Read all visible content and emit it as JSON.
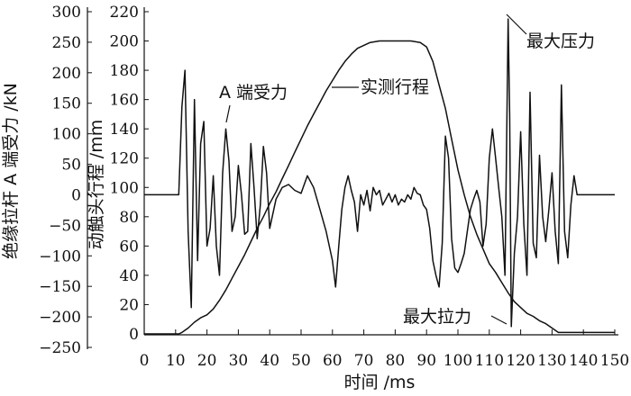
{
  "chart_data": {
    "type": "line",
    "title": "",
    "xlabel": "时间 /ms",
    "xlim": [
      0,
      150
    ],
    "x_ticks": [
      0,
      10,
      20,
      30,
      40,
      50,
      60,
      70,
      80,
      90,
      100,
      110,
      120,
      130,
      140,
      150
    ],
    "y_left": {
      "label": "绝缘拉杆 A 端受力 /kN",
      "lim": [
        -250,
        300
      ],
      "ticks": [
        -250,
        -200,
        -150,
        -100,
        -50,
        0,
        50,
        100,
        150,
        200,
        250,
        300
      ]
    },
    "y_right": {
      "label": "动触头行程 /mm",
      "lim": [
        0,
        220
      ],
      "ticks": [
        0,
        20,
        40,
        60,
        80,
        100,
        120,
        140,
        160,
        180,
        200,
        220
      ]
    },
    "grid": false,
    "annotations": [
      {
        "text": "A 端受力",
        "target_series": "force"
      },
      {
        "text": "实测行程",
        "target_series": "travel"
      },
      {
        "text": "最大压力",
        "x": 116.5,
        "y": 218,
        "axis": "right"
      },
      {
        "text": "最大拉力",
        "x": 116.5,
        "y": 7,
        "axis": "right"
      }
    ],
    "series": [
      {
        "id": "force",
        "axis": "right",
        "color": "#111111",
        "x": [
          0,
          11,
          12,
          13,
          14,
          15,
          16,
          17,
          18,
          19,
          20,
          21,
          22,
          23,
          24,
          25,
          26,
          27,
          28,
          29,
          30,
          31,
          32,
          33,
          34,
          35,
          36,
          37,
          38,
          39,
          40,
          42,
          44,
          46,
          48,
          50,
          52,
          54,
          56,
          58,
          60,
          61,
          62,
          63,
          64,
          65,
          66,
          67,
          68,
          69,
          70,
          71,
          72,
          73,
          74,
          75,
          76,
          77,
          78,
          79,
          80,
          81,
          82,
          83,
          84,
          85,
          86,
          87,
          88,
          89,
          90,
          91,
          92,
          93,
          94,
          95,
          96,
          97,
          98,
          99,
          100,
          101,
          102,
          103,
          104,
          105,
          106,
          107,
          108,
          109,
          110,
          111,
          112,
          113,
          114,
          115,
          116,
          116.5,
          117,
          118,
          119,
          120,
          121,
          122,
          123,
          124,
          125,
          126,
          127,
          128,
          129,
          130,
          131,
          132,
          133,
          134,
          135,
          136,
          137,
          138,
          140,
          150
        ],
        "y": [
          95,
          95,
          155,
          180,
          70,
          18,
          160,
          50,
          130,
          145,
          60,
          72,
          108,
          60,
          40,
          110,
          140,
          118,
          70,
          80,
          115,
          95,
          68,
          70,
          130,
          100,
          65,
          88,
          128,
          110,
          72,
          92,
          100,
          102,
          98,
          96,
          108,
          100,
          85,
          70,
          50,
          32,
          60,
          85,
          100,
          108,
          98,
          90,
          70,
          95,
          88,
          98,
          84,
          100,
          95,
          98,
          88,
          92,
          96,
          90,
          95,
          88,
          92,
          90,
          95,
          92,
          100,
          96,
          95,
          88,
          85,
          72,
          50,
          40,
          32,
          62,
          135,
          120,
          65,
          45,
          42,
          48,
          55,
          70,
          85,
          92,
          98,
          90,
          60,
          75,
          120,
          140,
          120,
          100,
          80,
          40,
          215,
          150,
          5,
          55,
          80,
          138,
          75,
          40,
          165,
          62,
          52,
          122,
          80,
          63,
          85,
          110,
          70,
          48,
          170,
          70,
          52,
          88,
          108,
          95,
          95,
          95
        ]
      },
      {
        "id": "travel",
        "axis": "right",
        "color": "#111111",
        "x": [
          0,
          11,
          12,
          14,
          16,
          18,
          20,
          22,
          24,
          26,
          28,
          30,
          32,
          34,
          36,
          38,
          40,
          42,
          44,
          46,
          48,
          50,
          52,
          54,
          56,
          58,
          60,
          62,
          64,
          66,
          68,
          70,
          72,
          75,
          80,
          85,
          88,
          90,
          92,
          94,
          96,
          98,
          100,
          102,
          104,
          106,
          108,
          110,
          112,
          114,
          116,
          118,
          120,
          122,
          124,
          126,
          128,
          130,
          132,
          134,
          136,
          140,
          150
        ],
        "y": [
          0,
          0,
          1,
          4,
          8,
          11,
          13,
          17,
          23,
          30,
          38,
          46,
          54,
          63,
          72,
          80,
          89,
          97,
          106,
          115,
          124,
          133,
          142,
          150,
          158,
          166,
          173,
          180,
          186,
          191,
          195,
          197,
          199,
          200,
          200,
          200,
          199,
          196,
          186,
          170,
          154,
          133,
          112,
          95,
          80,
          68,
          58,
          48,
          42,
          35,
          28,
          22,
          18,
          14,
          12,
          9,
          7,
          4,
          1,
          1,
          1,
          1,
          1
        ]
      }
    ]
  }
}
